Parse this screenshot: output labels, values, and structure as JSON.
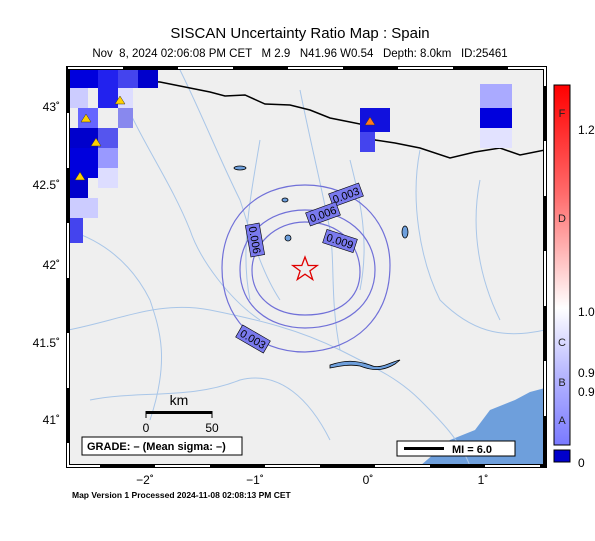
{
  "header": {
    "title": "SISCAN Uncertainty Ratio Map : Spain",
    "subtitle": "Nov  8, 2024 02:06:08 PM CET   M 2.9   N41.96 W0.54   Depth: 8.0km   ID:25461"
  },
  "axes": {
    "x_labels": [
      "−2˚",
      "−1˚",
      "0˚",
      "1˚"
    ],
    "y_labels": [
      "43˚",
      "42.5˚",
      "42˚",
      "41.5˚",
      "41˚"
    ]
  },
  "contours": [
    "0.003",
    "0.006",
    "0.009",
    "0.006",
    "0.003"
  ],
  "scale_bar": {
    "unit": "km",
    "start": "0",
    "end": "50"
  },
  "grade": "GRADE: – (Mean sigma: –)",
  "mmi": "MI = 6.0",
  "colorbar": {
    "grades": [
      "F",
      "D",
      "C",
      "B",
      "A"
    ],
    "values": [
      "1.2",
      "1.0",
      "0.9",
      "0.9"
    ],
    "bottom": "0"
  },
  "footer": "Map Version 1 Processed 2024-11-08 02:08:13 PM CET"
}
